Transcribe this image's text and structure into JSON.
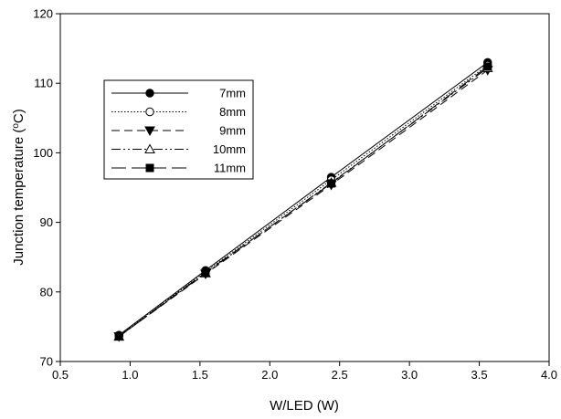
{
  "chart_data": {
    "type": "line",
    "title": "",
    "xlabel": "W/LED (W)",
    "ylabel": "Junction temperature",
    "ylabel_unit_sup": "o",
    "ylabel_unit": "C",
    "xlim": [
      0.5,
      4.0
    ],
    "ylim": [
      70,
      120
    ],
    "x_ticks": [
      0.5,
      1.0,
      1.5,
      2.0,
      2.5,
      3.0,
      3.5,
      4.0
    ],
    "x_tick_labels": [
      "0.5",
      "1.0",
      "1.5",
      "2.0",
      "2.5",
      "3.0",
      "3.5",
      "4.0"
    ],
    "y_ticks": [
      70,
      80,
      90,
      100,
      110,
      120
    ],
    "y_tick_labels": [
      "70",
      "80",
      "90",
      "100",
      "110",
      "120"
    ],
    "grid": false,
    "legend_position": "top-left",
    "x": [
      0.92,
      1.54,
      2.44,
      3.56
    ],
    "series": [
      {
        "name": "7mm",
        "values": [
          73.8,
          83.1,
          96.5,
          113.0
        ],
        "marker": "filled-circle",
        "line": "solid",
        "color": "#000000"
      },
      {
        "name": "8mm",
        "values": [
          73.7,
          82.9,
          96.1,
          112.6
        ],
        "marker": "open-circle",
        "line": "dotted",
        "color": "#000000"
      },
      {
        "name": "9mm",
        "values": [
          73.6,
          82.6,
          95.4,
          111.9
        ],
        "marker": "filled-triangle-down",
        "line": "dashed",
        "color": "#000000"
      },
      {
        "name": "10mm",
        "values": [
          73.6,
          82.7,
          95.7,
          112.2
        ],
        "marker": "open-triangle-up",
        "line": "dash-dot-dot",
        "color": "#000000"
      },
      {
        "name": "11mm",
        "values": [
          73.6,
          82.8,
          95.6,
          112.4
        ],
        "marker": "filled-square",
        "line": "long-dash",
        "color": "#000000"
      }
    ]
  }
}
